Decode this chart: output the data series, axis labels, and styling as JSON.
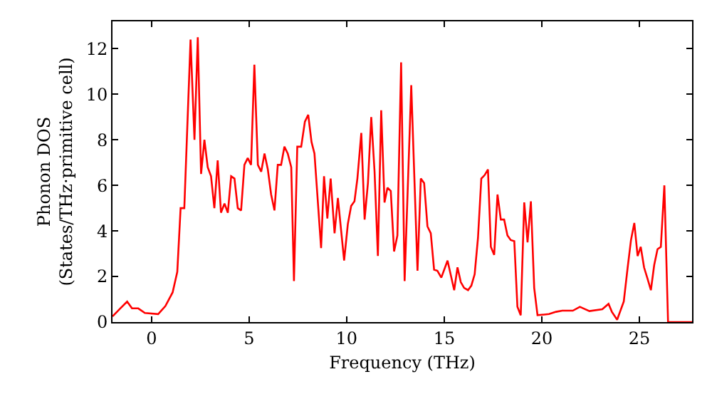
{
  "chart_data": {
    "type": "line",
    "xlabel": "Frequency (THz)",
    "ylabel": "Phonon DOS\n(States/THz·primitive cell)",
    "xlim": [
      -2,
      27.7
    ],
    "ylim": [
      0,
      13.2
    ],
    "xticks": [
      0,
      5,
      10,
      15,
      20,
      25
    ],
    "yticks": [
      0,
      2,
      4,
      6,
      8,
      10,
      12
    ],
    "marker": "none",
    "line_style": "solid",
    "x": [
      -2,
      -1.61,
      -1.25,
      -1.0,
      -0.68,
      -0.34,
      0.34,
      0.71,
      1.08,
      1.32,
      1.49,
      1.68,
      2.0,
      2.2,
      2.37,
      2.54,
      2.71,
      2.88,
      3.05,
      3.22,
      3.39,
      3.56,
      3.74,
      3.91,
      4.08,
      4.25,
      4.42,
      4.59,
      4.76,
      4.93,
      5.1,
      5.27,
      5.45,
      5.62,
      5.79,
      5.96,
      6.13,
      6.3,
      6.47,
      6.64,
      6.81,
      6.98,
      7.16,
      7.3,
      7.47,
      7.67,
      7.86,
      8.03,
      8.2,
      8.35,
      8.69,
      8.84,
      9.01,
      9.18,
      9.38,
      9.55,
      9.87,
      10.06,
      10.23,
      10.4,
      10.55,
      10.75,
      10.92,
      11.09,
      11.26,
      11.43,
      11.6,
      11.77,
      11.94,
      12.09,
      12.26,
      12.43,
      12.6,
      12.79,
      12.97,
      13.31,
      13.63,
      13.8,
      13.97,
      14.14,
      14.31,
      14.48,
      14.65,
      14.85,
      15.17,
      15.34,
      15.51,
      15.68,
      15.85,
      16.02,
      16.22,
      16.39,
      16.56,
      16.73,
      16.9,
      17.07,
      17.24,
      17.39,
      17.56,
      17.73,
      17.9,
      18.07,
      18.24,
      18.41,
      18.59,
      18.75,
      18.92,
      19.1,
      19.27,
      19.44,
      19.61,
      19.78,
      20.37,
      20.73,
      21.05,
      21.59,
      21.95,
      22.44,
      23.1,
      23.42,
      23.59,
      23.86,
      24.2,
      24.4,
      24.57,
      24.74,
      24.91,
      25.07,
      25.24,
      25.42,
      25.59,
      25.76,
      25.93,
      26.1,
      26.28,
      26.47,
      27.7
    ],
    "series": [
      {
        "color": "#ff0000",
        "values": [
          0.25,
          0.59,
          0.9,
          0.6,
          0.6,
          0.4,
          0.35,
          0.7,
          1.3,
          2.2,
          5.0,
          5.0,
          12.4,
          8.0,
          12.5,
          6.5,
          8.0,
          6.8,
          6.4,
          5.0,
          7.1,
          4.8,
          5.2,
          4.8,
          6.4,
          6.3,
          5.0,
          4.9,
          6.9,
          7.2,
          6.9,
          11.3,
          6.9,
          6.6,
          7.4,
          6.7,
          5.6,
          4.9,
          6.9,
          6.9,
          7.7,
          7.4,
          6.8,
          1.8,
          7.7,
          7.7,
          8.8,
          9.1,
          7.9,
          7.4,
          3.25,
          6.4,
          4.55,
          6.3,
          3.9,
          5.45,
          2.7,
          4.3,
          5.1,
          5.3,
          6.3,
          8.3,
          4.5,
          6.1,
          9.0,
          6.6,
          2.9,
          9.3,
          5.25,
          5.9,
          5.75,
          3.1,
          3.8,
          11.4,
          1.8,
          10.4,
          2.25,
          6.3,
          6.1,
          4.2,
          3.9,
          2.3,
          2.25,
          1.95,
          2.7,
          2.05,
          1.4,
          2.4,
          1.75,
          1.5,
          1.4,
          1.6,
          2.1,
          3.7,
          6.3,
          6.45,
          6.7,
          3.3,
          2.95,
          5.6,
          4.5,
          4.5,
          3.8,
          3.6,
          3.55,
          0.67,
          0.3,
          5.25,
          3.5,
          5.3,
          1.5,
          0.3,
          0.35,
          0.45,
          0.5,
          0.5,
          0.67,
          0.48,
          0.56,
          0.8,
          0.45,
          0.1,
          0.9,
          2.4,
          3.6,
          4.35,
          2.9,
          3.3,
          2.4,
          1.9,
          1.4,
          2.5,
          3.2,
          3.3,
          6.0,
          0.0,
          0.0
        ]
      }
    ]
  }
}
